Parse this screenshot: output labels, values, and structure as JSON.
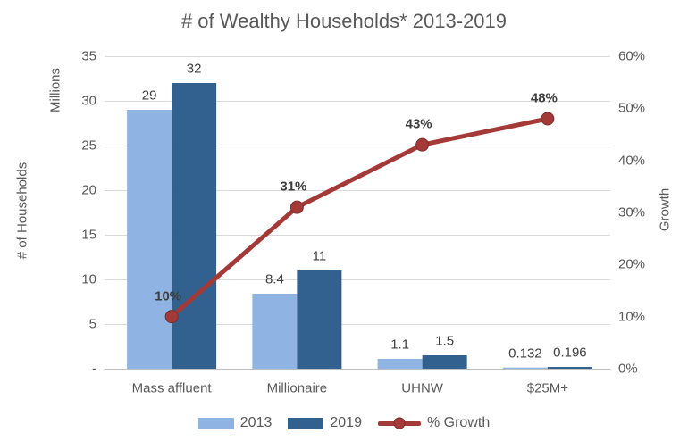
{
  "chart_data": {
    "type": "combo-bar-line",
    "title": "# of Wealthy Households* 2013-2019",
    "categories": [
      "Mass affluent",
      "Millionaire",
      "UHNW",
      "$25M+"
    ],
    "series": [
      {
        "name": "2013",
        "kind": "bar",
        "axis": "left",
        "color": "#8FB3E2",
        "values": [
          29,
          8.4,
          1.1,
          0.132
        ],
        "value_labels": [
          "29",
          "8.4",
          "1.1",
          "0.132"
        ]
      },
      {
        "name": "2019",
        "kind": "bar",
        "axis": "left",
        "color": "#32618F",
        "values": [
          32,
          11,
          1.5,
          0.196
        ],
        "value_labels": [
          "32",
          "11",
          "1.5",
          "0.196"
        ]
      },
      {
        "name": "% Growth",
        "kind": "line",
        "axis": "right",
        "color": "#A43A38",
        "values": [
          10,
          31,
          43,
          48
        ],
        "value_labels": [
          "10%",
          "31%",
          "43%",
          "48%"
        ]
      }
    ],
    "axis_left": {
      "title": "# of Households",
      "units_label": "Millions",
      "min": 0,
      "max": 35,
      "tick_step": 5,
      "tick_labels": [
        "35",
        "30",
        "25",
        "20",
        "15",
        "10",
        "5",
        "-"
      ]
    },
    "axis_right": {
      "title": "Growth",
      "min": 0,
      "max": 60,
      "tick_step": 10,
      "tick_labels": [
        "60%",
        "50%",
        "40%",
        "30%",
        "20%",
        "10%",
        "0%"
      ]
    },
    "legend": {
      "position": "bottom",
      "items": [
        "2013",
        "2019",
        "% Growth"
      ]
    },
    "grid": true,
    "colors": {
      "grid": "#D9D9D9",
      "axis_line": "#C0C0C0",
      "text": "#595959",
      "data_label": "#404040",
      "marker_edge": "#7F2D2B"
    }
  }
}
